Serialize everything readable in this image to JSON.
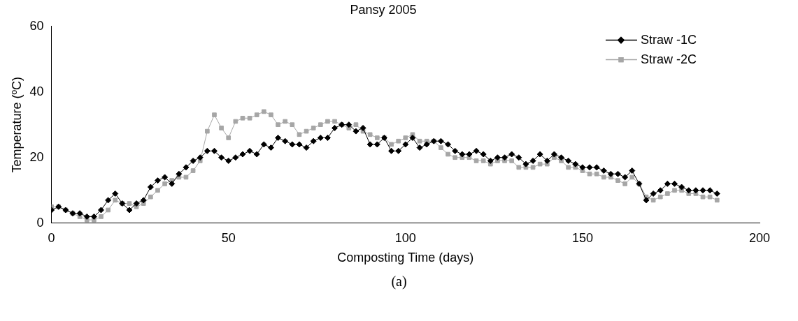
{
  "chart_data": {
    "type": "line",
    "title": "Pansy 2005",
    "xlabel": "Composting Time (days)",
    "ylabel": "Temperature (ºC)",
    "annotations": [
      "(a)"
    ],
    "x": [
      0,
      2,
      4,
      6,
      8,
      10,
      12,
      14,
      16,
      18,
      20,
      22,
      24,
      26,
      28,
      30,
      32,
      34,
      36,
      38,
      40,
      42,
      44,
      46,
      48,
      50,
      52,
      54,
      56,
      58,
      60,
      62,
      64,
      66,
      68,
      70,
      72,
      74,
      76,
      78,
      80,
      82,
      84,
      86,
      88,
      90,
      92,
      94,
      96,
      98,
      100,
      102,
      104,
      106,
      108,
      110,
      112,
      114,
      116,
      118,
      120,
      122,
      124,
      126,
      128,
      130,
      132,
      134,
      136,
      138,
      140,
      142,
      144,
      146,
      148,
      150,
      152,
      154,
      156,
      158,
      160,
      162,
      164,
      166,
      168,
      170,
      172,
      174,
      176,
      178,
      180,
      182,
      184,
      186,
      188
    ],
    "series": [
      {
        "name": "Straw -1C",
        "color": "#000000",
        "marker": "diamond",
        "values": [
          4,
          5,
          4,
          3,
          3,
          2,
          2,
          4,
          7,
          9,
          6,
          4,
          6,
          7,
          11,
          13,
          14,
          12,
          15,
          17,
          19,
          20,
          22,
          22,
          20,
          19,
          20,
          21,
          22,
          21,
          24,
          23,
          26,
          25,
          24,
          24,
          23,
          25,
          26,
          26,
          29,
          30,
          30,
          28,
          29,
          24,
          24,
          26,
          22,
          22,
          24,
          26,
          23,
          24,
          25,
          25,
          24,
          22,
          21,
          21,
          22,
          21,
          19,
          20,
          20,
          21,
          20,
          18,
          19,
          21,
          19,
          21,
          20,
          19,
          18,
          17,
          17,
          17,
          16,
          15,
          15,
          14,
          16,
          12,
          7,
          9,
          10,
          12,
          12,
          11,
          10,
          10,
          10,
          10,
          9
        ]
      },
      {
        "name": "Straw -2C",
        "color": "#a6a6a6",
        "marker": "square",
        "values": [
          5,
          5,
          4,
          3,
          2,
          1,
          1,
          2,
          4,
          7,
          6,
          6,
          5,
          6,
          8,
          10,
          12,
          13,
          14,
          14,
          16,
          19,
          28,
          33,
          29,
          26,
          31,
          32,
          32,
          33,
          34,
          33,
          30,
          31,
          30,
          27,
          28,
          29,
          30,
          31,
          31,
          30,
          29,
          30,
          28,
          27,
          26,
          26,
          24,
          25,
          26,
          27,
          25,
          25,
          25,
          23,
          21,
          20,
          20,
          20,
          19,
          19,
          18,
          19,
          19,
          19,
          17,
          17,
          17,
          18,
          18,
          20,
          19,
          17,
          17,
          16,
          15,
          15,
          14,
          14,
          13,
          12,
          14,
          12,
          8,
          7,
          8,
          9,
          10,
          10,
          9,
          9,
          8,
          8,
          7
        ]
      }
    ],
    "xlim": [
      0,
      200
    ],
    "xticks": [
      0,
      50,
      100,
      150,
      200
    ],
    "ylim": [
      0,
      60
    ],
    "yticks": [
      0,
      20,
      40,
      60
    ],
    "grid": false,
    "legend": "top right",
    "line_style": "solid"
  }
}
